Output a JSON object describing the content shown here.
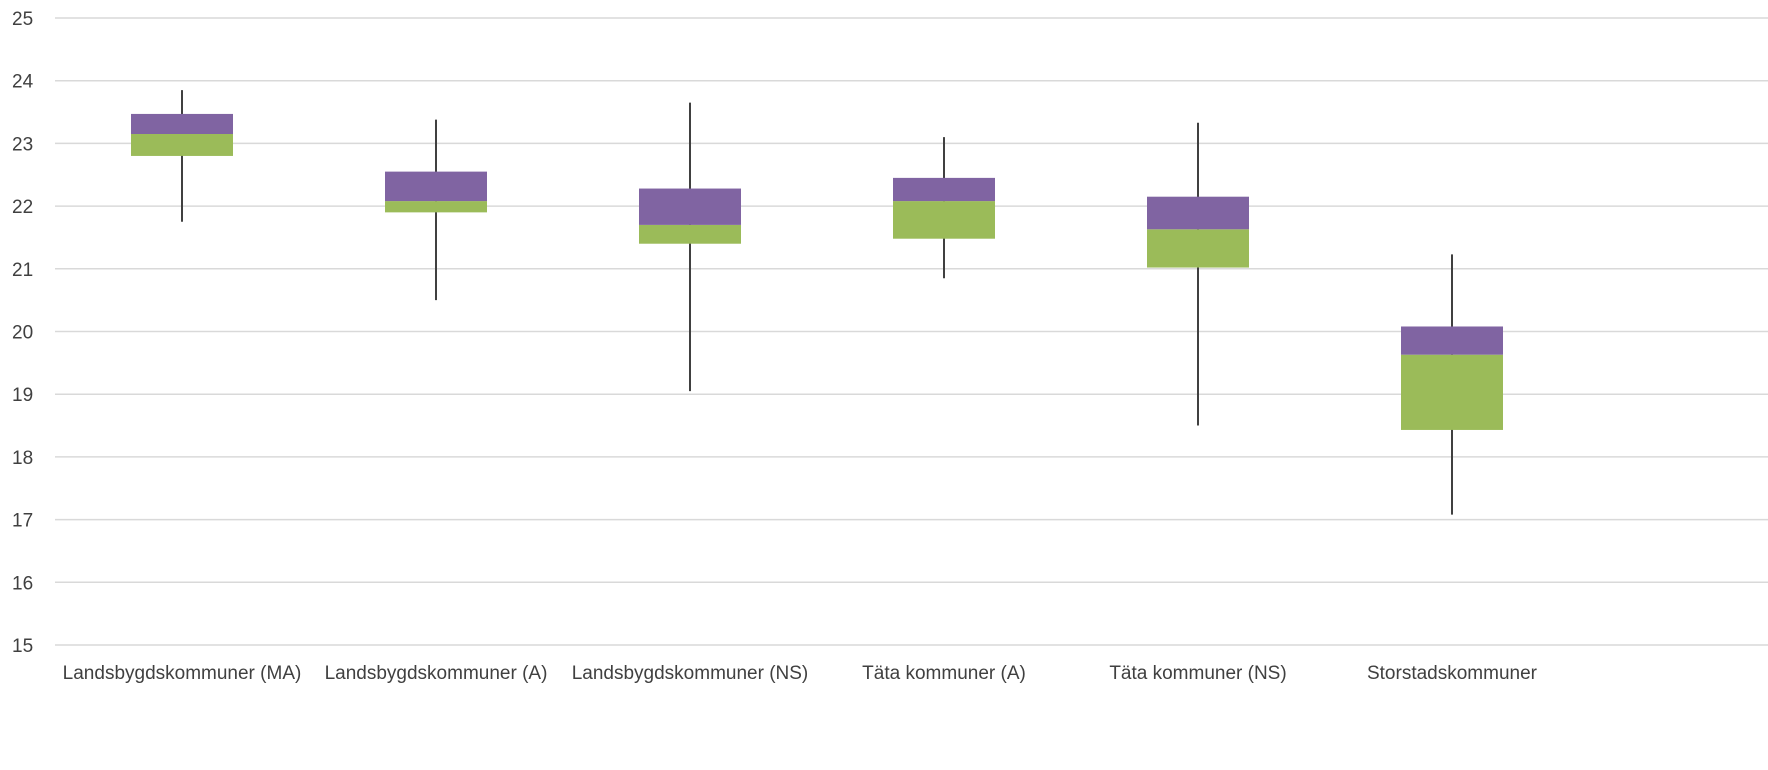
{
  "chart_data": {
    "type": "box",
    "categories": [
      "Landsbygdskommuner (MA)",
      "Landsbygdskommuner (A)",
      "Landsbygdskommuner (NS)",
      "Täta kommuner (A)",
      "Täta kommuner (NS)",
      "Storstadskommuner"
    ],
    "boxes": [
      {
        "min": 21.75,
        "q1": 22.8,
        "median": 23.15,
        "q3": 23.47,
        "max": 23.85
      },
      {
        "min": 20.5,
        "q1": 21.9,
        "median": 22.08,
        "q3": 22.55,
        "max": 23.38
      },
      {
        "min": 19.05,
        "q1": 21.4,
        "median": 21.7,
        "q3": 22.28,
        "max": 23.65
      },
      {
        "min": 20.85,
        "q1": 21.48,
        "median": 22.08,
        "q3": 22.45,
        "max": 23.1
      },
      {
        "min": 18.5,
        "q1": 21.02,
        "median": 21.63,
        "q3": 22.15,
        "max": 23.33
      },
      {
        "min": 17.08,
        "q1": 18.43,
        "median": 19.63,
        "q3": 20.08,
        "max": 21.23
      }
    ],
    "y_ticks": [
      "15",
      "16",
      "17",
      "18",
      "19",
      "20",
      "21",
      "22",
      "23",
      "24",
      "25"
    ],
    "ylim": [
      15,
      25
    ],
    "grid": true,
    "legend": "none",
    "colors": {
      "lower_box": "#9bbb59",
      "upper_box": "#8064a2",
      "whisker": "#404040",
      "grid": "#d9d9d9"
    }
  }
}
